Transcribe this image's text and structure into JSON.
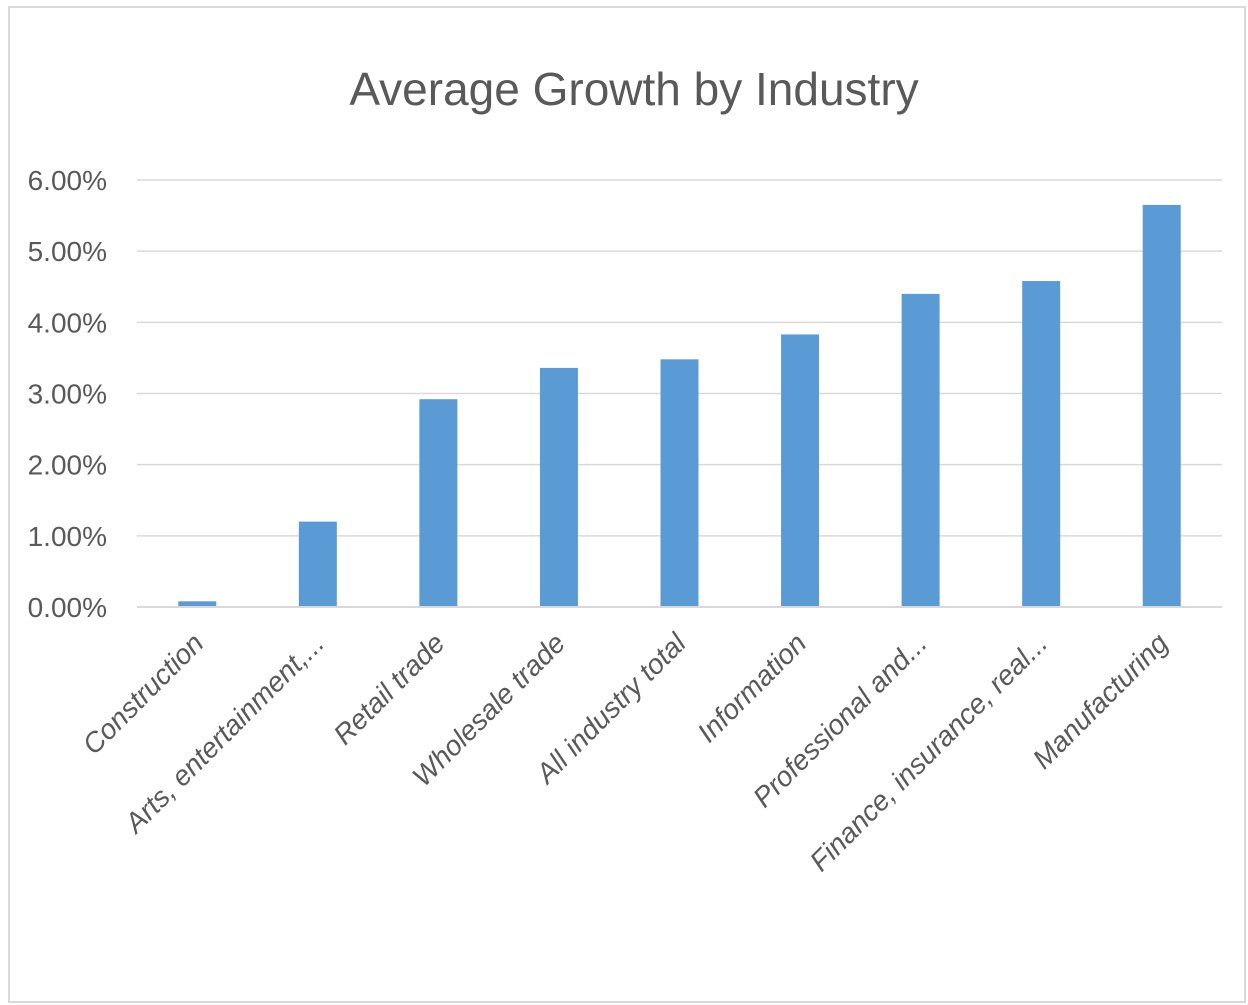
{
  "chart_data": {
    "type": "bar",
    "title": "Average Growth by Industry",
    "xlabel": "",
    "ylabel": "",
    "ylim": [
      0,
      0.06
    ],
    "y_ticks": [
      "0.00%",
      "1.00%",
      "2.00%",
      "3.00%",
      "4.00%",
      "5.00%",
      "6.00%"
    ],
    "y_tick_values": [
      0,
      0.01,
      0.02,
      0.03,
      0.04,
      0.05,
      0.06
    ],
    "grid": true,
    "legend": "none",
    "categories": [
      "Construction",
      "Arts, entertainment,...",
      "Retail trade",
      "Wholesale trade",
      "All industry total",
      "Information",
      "Professional and...",
      "Finance, insurance, real...",
      "Manufacturing"
    ],
    "values": [
      0.0008,
      0.012,
      0.0292,
      0.0336,
      0.0348,
      0.0383,
      0.044,
      0.0458,
      0.0565
    ],
    "colors": {
      "bar": "#5b9bd5",
      "grid": "#d9d9d9",
      "axis": "#d9d9d9",
      "text": "#595959"
    }
  }
}
